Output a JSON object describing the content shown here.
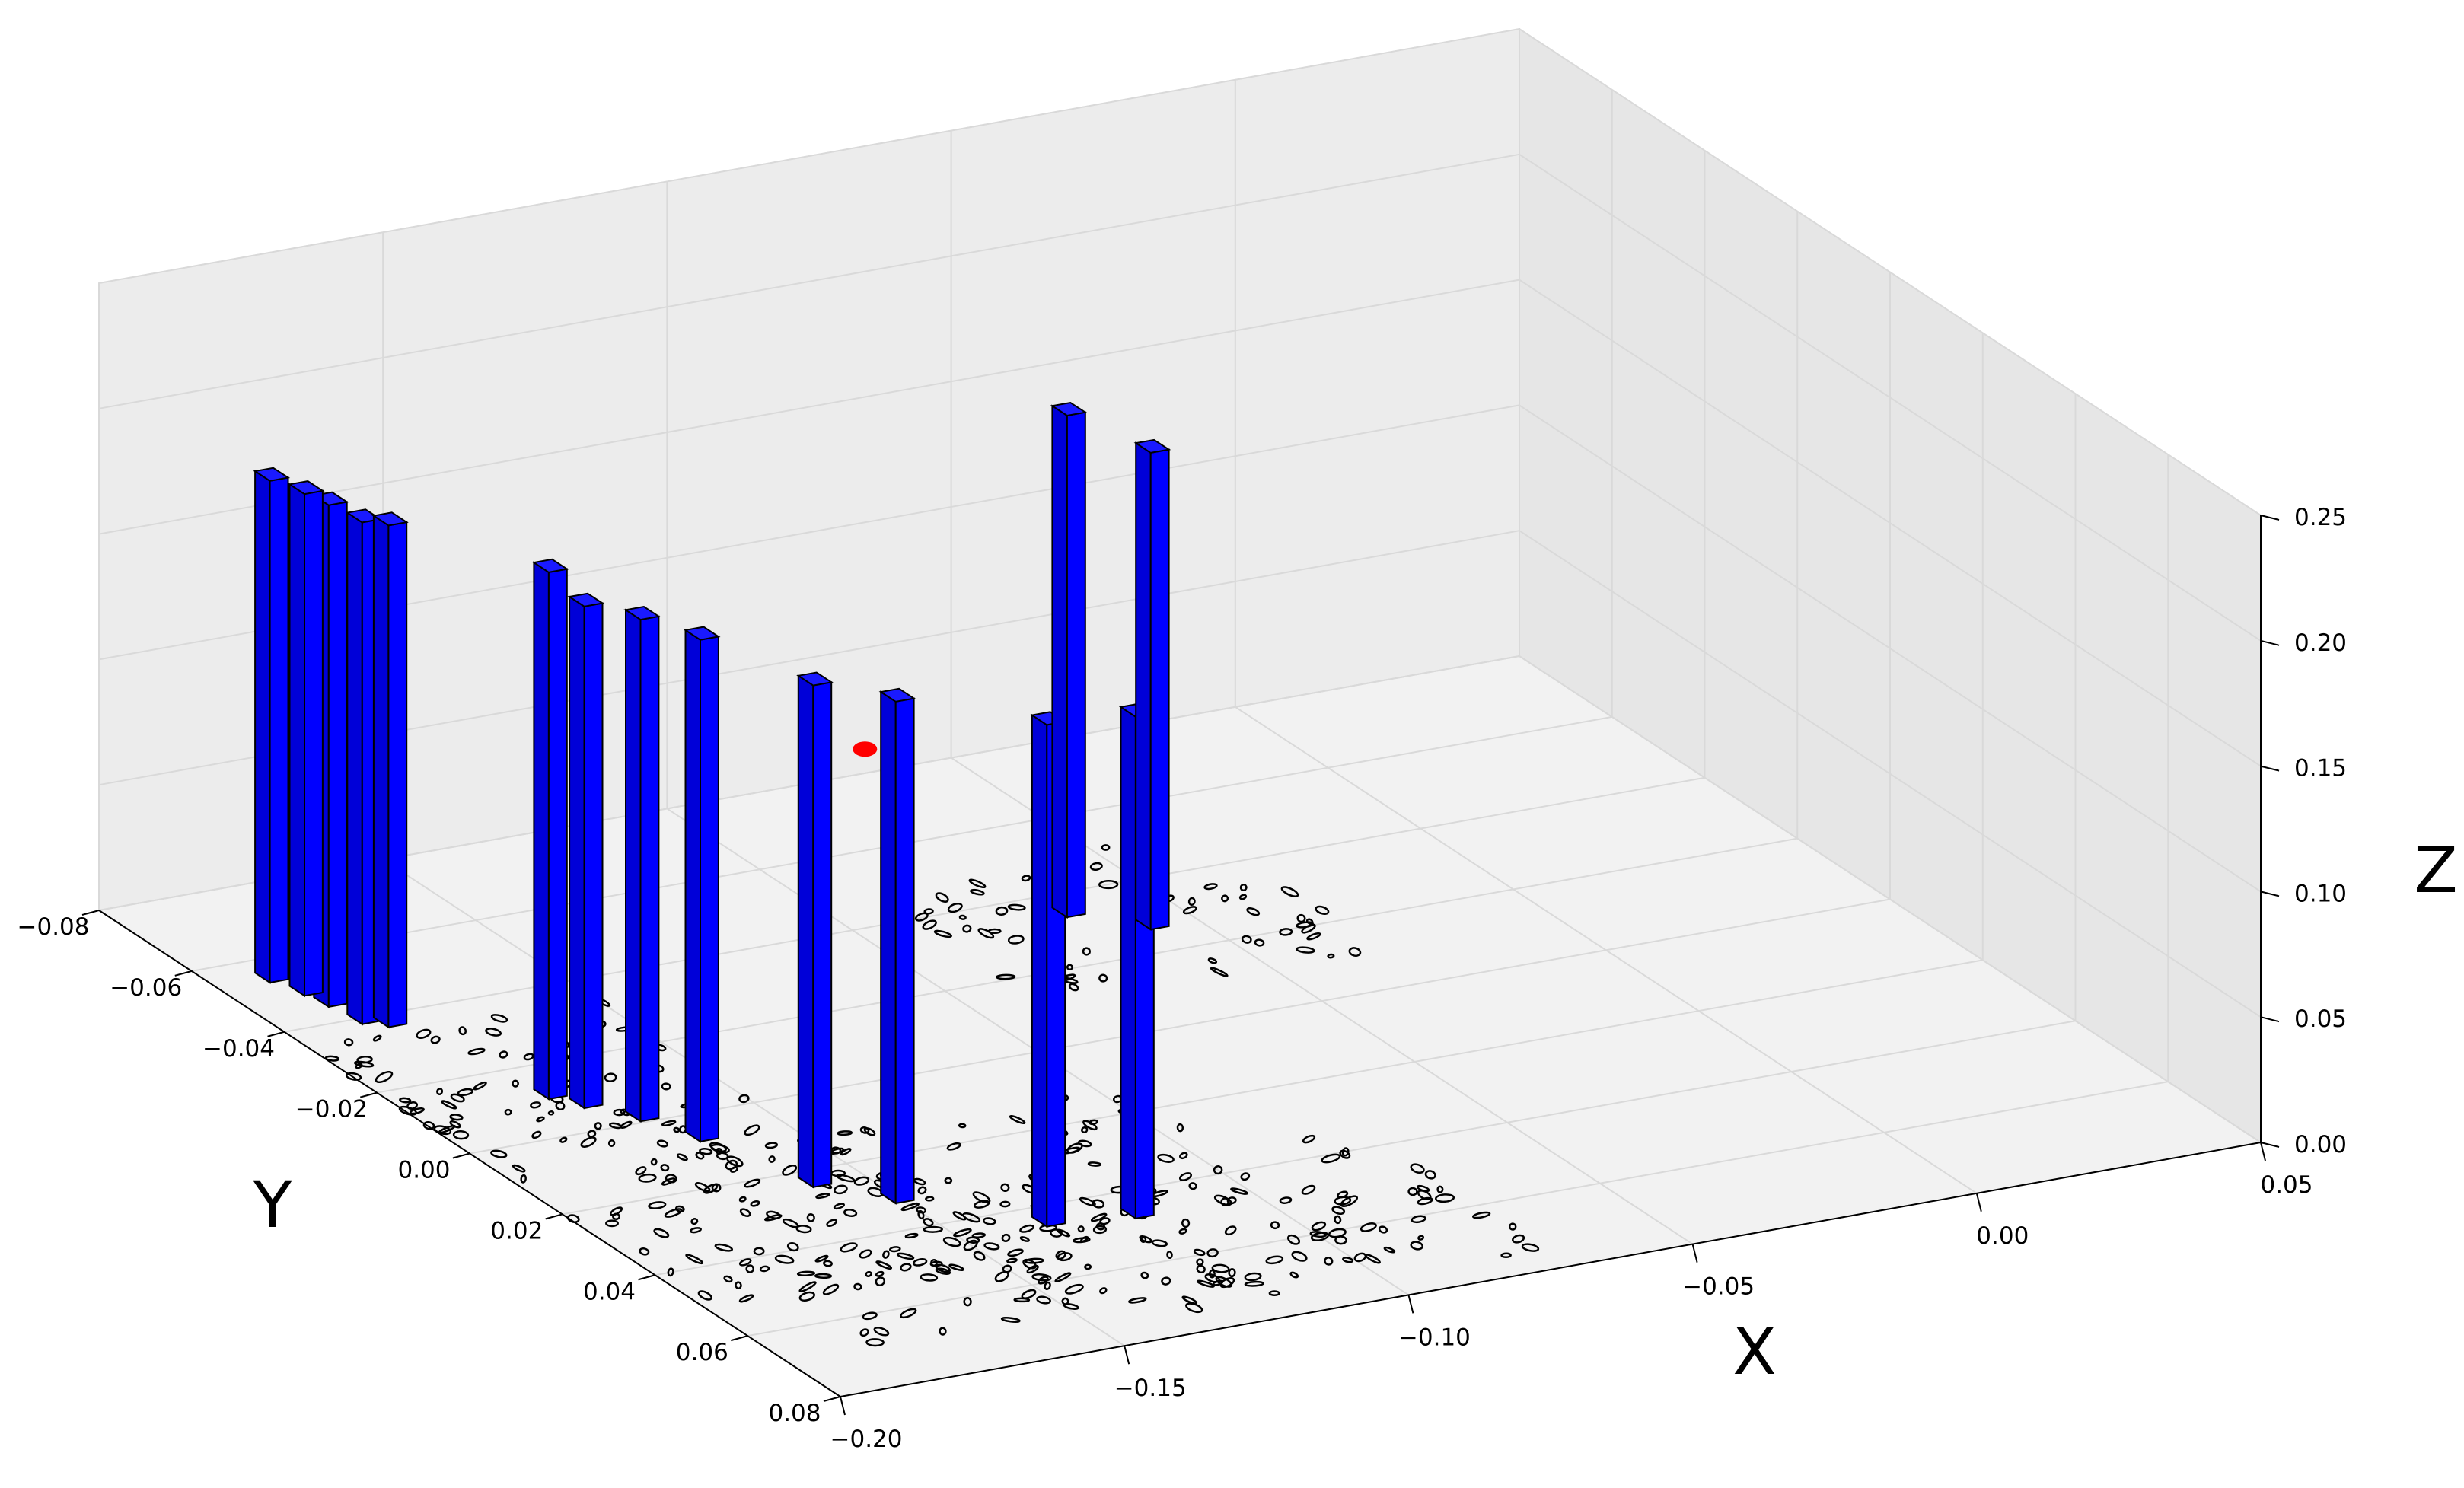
{
  "chart_data": {
    "type": "3d-bar",
    "title": "",
    "axes": {
      "x": {
        "label": "X",
        "lim": [
          -0.2,
          0.05
        ],
        "ticks": [
          -0.2,
          -0.15,
          -0.1,
          -0.05,
          0.0,
          0.05
        ],
        "tick_labels": [
          "−0.20",
          "−0.15",
          "−0.10",
          "−0.05",
          "0.00",
          "0.05"
        ]
      },
      "y": {
        "label": "Y",
        "lim": [
          -0.08,
          0.08
        ],
        "ticks": [
          -0.08,
          -0.06,
          -0.04,
          -0.02,
          0.0,
          0.02,
          0.04,
          0.06,
          0.08
        ],
        "tick_labels": [
          "−0.08",
          "−0.06",
          "−0.04",
          "−0.02",
          "0.00",
          "0.02",
          "0.04",
          "0.06",
          "0.08"
        ]
      },
      "z": {
        "label": "Z",
        "lim": [
          0.0,
          0.25
        ],
        "ticks": [
          0.0,
          0.05,
          0.1,
          0.15,
          0.2,
          0.25
        ],
        "tick_labels": [
          "0.00",
          "0.05",
          "0.10",
          "0.15",
          "0.20",
          "0.25"
        ]
      }
    },
    "grid": true,
    "bar_color": "#0000ff",
    "bar_edge_color": "#000000",
    "marker_color": "#ff0000",
    "contour_color": "#000000",
    "pane_color": "#f2f2f2",
    "bars": [
      {
        "x": -0.19,
        "y": -0.055,
        "z": 0.2
      },
      {
        "x": -0.188,
        "y": -0.05,
        "z": 0.2
      },
      {
        "x": -0.187,
        "y": -0.046,
        "z": 0.2
      },
      {
        "x": -0.186,
        "y": -0.04,
        "z": 0.2
      },
      {
        "x": -0.183,
        "y": -0.038,
        "z": 0.2
      },
      {
        "x": -0.176,
        "y": -0.012,
        "z": 0.21
      },
      {
        "x": -0.173,
        "y": -0.008,
        "z": 0.2
      },
      {
        "x": -0.168,
        "y": -0.002,
        "z": 0.2
      },
      {
        "x": -0.164,
        "y": 0.006,
        "z": 0.2
      },
      {
        "x": -0.158,
        "y": 0.023,
        "z": 0.2
      },
      {
        "x": -0.15,
        "y": 0.031,
        "z": 0.2
      },
      {
        "x": -0.134,
        "y": 0.044,
        "z": 0.2
      },
      {
        "x": -0.12,
        "y": 0.046,
        "z": 0.2
      },
      {
        "x": -0.066,
        "y": -0.035,
        "z": 0.2
      },
      {
        "x": -0.057,
        "y": -0.028,
        "z": 0.19
      }
    ],
    "marker": {
      "x": -0.15,
      "y": 0.024,
      "z": 0.17
    }
  }
}
